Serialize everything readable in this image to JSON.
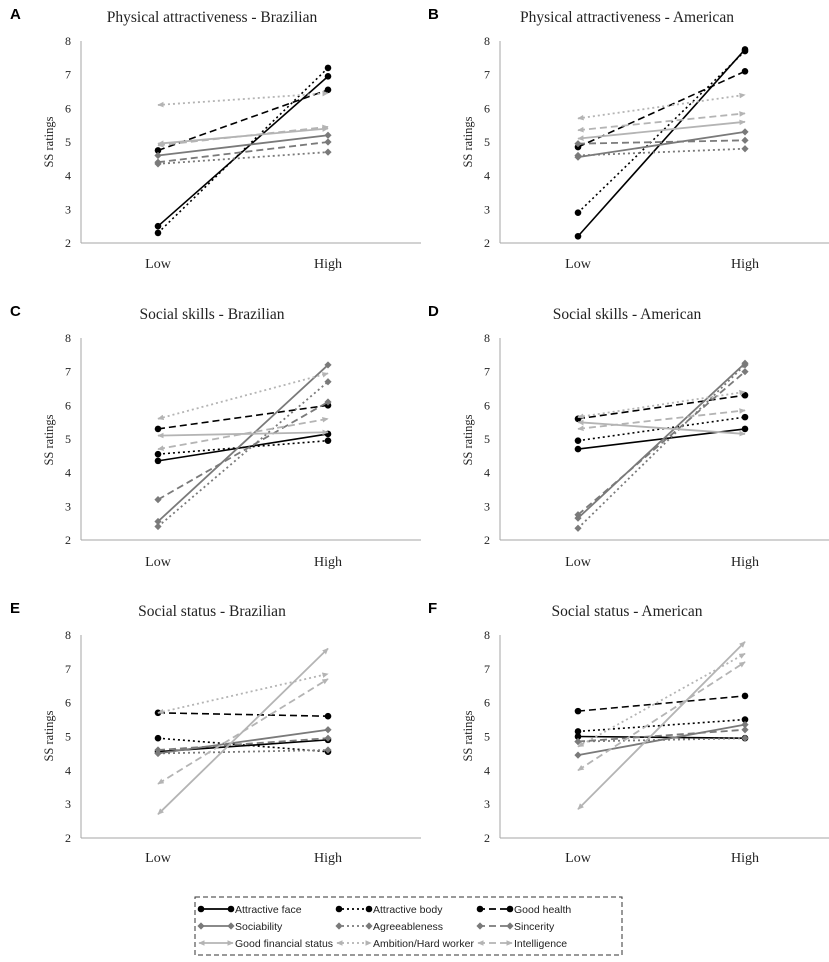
{
  "colors": {
    "black": "#000000",
    "dark_gray": "#7a7a7a",
    "light_gray": "#b4b4b4",
    "axis": "#a6a6a6"
  },
  "legend": {
    "entries": [
      {
        "name": "Attractive face",
        "color": "#000000",
        "dash": "solid",
        "marker": "circle"
      },
      {
        "name": "Attractive body",
        "color": "#000000",
        "dash": "dot",
        "marker": "circle"
      },
      {
        "name": "Good health",
        "color": "#000000",
        "dash": "dash",
        "marker": "circle"
      },
      {
        "name": "Sociability",
        "color": "#7a7a7a",
        "dash": "solid",
        "marker": "diamond"
      },
      {
        "name": "Agreeableness",
        "color": "#7a7a7a",
        "dash": "dot",
        "marker": "diamond"
      },
      {
        "name": "Sincerity",
        "color": "#7a7a7a",
        "dash": "dash",
        "marker": "diamond"
      },
      {
        "name": "Good financial status",
        "color": "#b4b4b4",
        "dash": "solid",
        "marker": "arrow"
      },
      {
        "name": "Ambition/Hard worker",
        "color": "#b4b4b4",
        "dash": "dot",
        "marker": "arrow"
      },
      {
        "name": "Intelligence",
        "color": "#b4b4b4",
        "dash": "dash",
        "marker": "arrow"
      }
    ]
  },
  "chart_data": [
    {
      "panel": "A",
      "type": "line",
      "title": "Physical attractiveness - Brazilian",
      "ylabel": "SS ratings",
      "xlabel": "",
      "categories": [
        "Low",
        "High"
      ],
      "ylim": [
        2,
        8
      ],
      "yticks": [
        2,
        3,
        4,
        5,
        6,
        7,
        8
      ],
      "grid": false,
      "series": [
        {
          "name": "Attractive face",
          "values": [
            2.5,
            6.95
          ]
        },
        {
          "name": "Attractive body",
          "values": [
            2.3,
            7.2
          ]
        },
        {
          "name": "Good health",
          "values": [
            4.75,
            6.55
          ]
        },
        {
          "name": "Sociability",
          "values": [
            4.6,
            5.2
          ]
        },
        {
          "name": "Agreeableness",
          "values": [
            4.35,
            4.7
          ]
        },
        {
          "name": "Sincerity",
          "values": [
            4.4,
            5.0
          ]
        },
        {
          "name": "Good financial status",
          "values": [
            4.95,
            5.4
          ]
        },
        {
          "name": "Ambition/Hard worker",
          "values": [
            6.1,
            6.45
          ]
        },
        {
          "name": "Intelligence",
          "values": [
            4.9,
            5.45
          ]
        }
      ]
    },
    {
      "panel": "B",
      "type": "line",
      "title": "Physical attractiveness - American",
      "ylabel": "SS ratings",
      "xlabel": "",
      "categories": [
        "Low",
        "High"
      ],
      "ylim": [
        2,
        8
      ],
      "yticks": [
        2,
        3,
        4,
        5,
        6,
        7,
        8
      ],
      "grid": false,
      "series": [
        {
          "name": "Attractive face",
          "values": [
            2.2,
            7.75
          ]
        },
        {
          "name": "Attractive body",
          "values": [
            2.9,
            7.7
          ]
        },
        {
          "name": "Good health",
          "values": [
            4.85,
            7.1
          ]
        },
        {
          "name": "Sociability",
          "values": [
            4.55,
            5.3
          ]
        },
        {
          "name": "Agreeableness",
          "values": [
            4.6,
            4.8
          ]
        },
        {
          "name": "Sincerity",
          "values": [
            4.95,
            5.05
          ]
        },
        {
          "name": "Good financial status",
          "values": [
            5.1,
            5.6
          ]
        },
        {
          "name": "Ambition/Hard worker",
          "values": [
            5.7,
            6.4
          ]
        },
        {
          "name": "Intelligence",
          "values": [
            5.35,
            5.85
          ]
        }
      ]
    },
    {
      "panel": "C",
      "type": "line",
      "title": "Social skills - Brazilian",
      "ylabel": "SS ratings",
      "xlabel": "",
      "categories": [
        "Low",
        "High"
      ],
      "ylim": [
        2,
        8
      ],
      "yticks": [
        2,
        3,
        4,
        5,
        6,
        7,
        8
      ],
      "grid": false,
      "series": [
        {
          "name": "Attractive face",
          "values": [
            4.35,
            5.15
          ]
        },
        {
          "name": "Attractive body",
          "values": [
            4.55,
            4.95
          ]
        },
        {
          "name": "Good health",
          "values": [
            5.3,
            6.0
          ]
        },
        {
          "name": "Sociability",
          "values": [
            2.55,
            7.2
          ]
        },
        {
          "name": "Agreeableness",
          "values": [
            2.4,
            6.7
          ]
        },
        {
          "name": "Sincerity",
          "values": [
            3.2,
            6.1
          ]
        },
        {
          "name": "Good financial status",
          "values": [
            5.1,
            5.2
          ]
        },
        {
          "name": "Ambition/Hard worker",
          "values": [
            5.6,
            6.95
          ]
        },
        {
          "name": "Intelligence",
          "values": [
            4.7,
            5.6
          ]
        }
      ]
    },
    {
      "panel": "D",
      "type": "line",
      "title": "Social skills - American",
      "ylabel": "SS ratings",
      "xlabel": "",
      "categories": [
        "Low",
        "High"
      ],
      "ylim": [
        2,
        8
      ],
      "yticks": [
        2,
        3,
        4,
        5,
        6,
        7,
        8
      ],
      "grid": false,
      "series": [
        {
          "name": "Attractive face",
          "values": [
            4.7,
            5.3
          ]
        },
        {
          "name": "Attractive body",
          "values": [
            4.95,
            5.65
          ]
        },
        {
          "name": "Good health",
          "values": [
            5.6,
            6.3
          ]
        },
        {
          "name": "Sociability",
          "values": [
            2.65,
            7.25
          ]
        },
        {
          "name": "Agreeableness",
          "values": [
            2.35,
            7.2
          ]
        },
        {
          "name": "Sincerity",
          "values": [
            2.75,
            7.0
          ]
        },
        {
          "name": "Good financial status",
          "values": [
            5.5,
            5.15
          ]
        },
        {
          "name": "Ambition/Hard worker",
          "values": [
            5.65,
            6.4
          ]
        },
        {
          "name": "Intelligence",
          "values": [
            5.3,
            5.85
          ]
        }
      ]
    },
    {
      "panel": "E",
      "type": "line",
      "title": "Social status - Brazilian",
      "ylabel": "SS ratings",
      "xlabel": "",
      "categories": [
        "Low",
        "High"
      ],
      "ylim": [
        2,
        8
      ],
      "yticks": [
        2,
        3,
        4,
        5,
        6,
        7,
        8
      ],
      "grid": false,
      "series": [
        {
          "name": "Attractive face",
          "values": [
            4.55,
            4.9
          ]
        },
        {
          "name": "Attractive body",
          "values": [
            4.95,
            4.55
          ]
        },
        {
          "name": "Good health",
          "values": [
            5.7,
            5.6
          ]
        },
        {
          "name": "Sociability",
          "values": [
            4.5,
            5.2
          ]
        },
        {
          "name": "Agreeableness",
          "values": [
            4.5,
            4.6
          ]
        },
        {
          "name": "Sincerity",
          "values": [
            4.6,
            4.95
          ]
        },
        {
          "name": "Good financial status",
          "values": [
            2.7,
            7.6
          ]
        },
        {
          "name": "Ambition/Hard worker",
          "values": [
            5.7,
            6.85
          ]
        },
        {
          "name": "Intelligence",
          "values": [
            3.6,
            6.7
          ]
        }
      ]
    },
    {
      "panel": "F",
      "type": "line",
      "title": "Social status - American",
      "ylabel": "SS ratings",
      "xlabel": "",
      "categories": [
        "Low",
        "High"
      ],
      "ylim": [
        2,
        8
      ],
      "yticks": [
        2,
        3,
        4,
        5,
        6,
        7,
        8
      ],
      "grid": false,
      "series": [
        {
          "name": "Attractive face",
          "values": [
            5.0,
            4.95
          ]
        },
        {
          "name": "Attractive body",
          "values": [
            5.15,
            5.5
          ]
        },
        {
          "name": "Good health",
          "values": [
            5.75,
            6.2
          ]
        },
        {
          "name": "Sociability",
          "values": [
            4.45,
            5.35
          ]
        },
        {
          "name": "Agreeableness",
          "values": [
            4.85,
            4.95
          ]
        },
        {
          "name": "Sincerity",
          "values": [
            4.85,
            5.2
          ]
        },
        {
          "name": "Good financial status",
          "values": [
            2.85,
            7.8
          ]
        },
        {
          "name": "Ambition/Hard worker",
          "values": [
            4.7,
            7.45
          ]
        },
        {
          "name": "Intelligence",
          "values": [
            4.0,
            7.2
          ]
        }
      ]
    }
  ]
}
